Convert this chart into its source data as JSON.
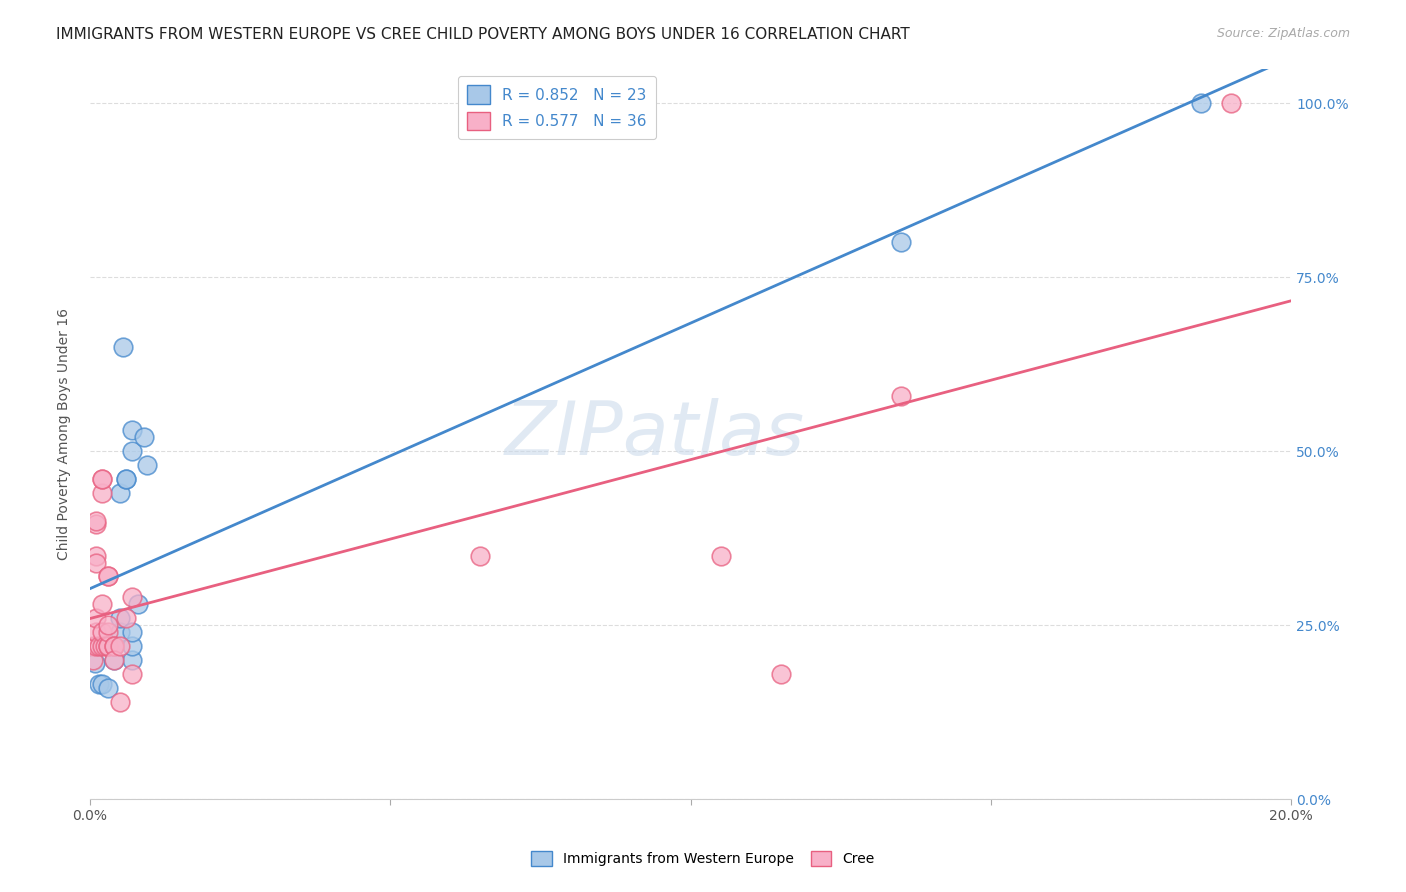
{
  "title": "IMMIGRANTS FROM WESTERN EUROPE VS CREE CHILD POVERTY AMONG BOYS UNDER 16 CORRELATION CHART",
  "source": "Source: ZipAtlas.com",
  "ylabel": "Child Poverty Among Boys Under 16",
  "blue_label": "Immigrants from Western Europe",
  "pink_label": "Cree",
  "blue_R": "0.852",
  "blue_N": "23",
  "pink_R": "0.577",
  "pink_N": "36",
  "blue_color": "#a8c8e8",
  "pink_color": "#f8b0c8",
  "blue_line_color": "#4488cc",
  "pink_line_color": "#e86080",
  "watermark": "ZIPatlas",
  "blue_points": [
    [
      0.0008,
      0.195
    ],
    [
      0.0015,
      0.165
    ],
    [
      0.002,
      0.165
    ],
    [
      0.003,
      0.16
    ],
    [
      0.003,
      0.22
    ],
    [
      0.004,
      0.2
    ],
    [
      0.004,
      0.22
    ],
    [
      0.005,
      0.24
    ],
    [
      0.005,
      0.26
    ],
    [
      0.005,
      0.44
    ],
    [
      0.006,
      0.46
    ],
    [
      0.006,
      0.46
    ],
    [
      0.007,
      0.5
    ],
    [
      0.007,
      0.53
    ],
    [
      0.007,
      0.2
    ],
    [
      0.007,
      0.22
    ],
    [
      0.007,
      0.24
    ],
    [
      0.008,
      0.28
    ],
    [
      0.009,
      0.52
    ],
    [
      0.0055,
      0.65
    ],
    [
      0.0095,
      0.48
    ],
    [
      0.185,
      1.0
    ],
    [
      0.135,
      0.8
    ]
  ],
  "pink_points": [
    [
      0.0005,
      0.22
    ],
    [
      0.0005,
      0.2
    ],
    [
      0.001,
      0.22
    ],
    [
      0.001,
      0.24
    ],
    [
      0.001,
      0.26
    ],
    [
      0.001,
      0.35
    ],
    [
      0.001,
      0.34
    ],
    [
      0.001,
      0.395
    ],
    [
      0.001,
      0.4
    ],
    [
      0.0015,
      0.22
    ],
    [
      0.002,
      0.22
    ],
    [
      0.002,
      0.24
    ],
    [
      0.002,
      0.44
    ],
    [
      0.002,
      0.46
    ],
    [
      0.002,
      0.46
    ],
    [
      0.0025,
      0.22
    ],
    [
      0.002,
      0.28
    ],
    [
      0.003,
      0.22
    ],
    [
      0.003,
      0.22
    ],
    [
      0.003,
      0.24
    ],
    [
      0.003,
      0.25
    ],
    [
      0.003,
      0.32
    ],
    [
      0.003,
      0.32
    ],
    [
      0.004,
      0.22
    ],
    [
      0.004,
      0.22
    ],
    [
      0.004,
      0.2
    ],
    [
      0.005,
      0.22
    ],
    [
      0.005,
      0.14
    ],
    [
      0.006,
      0.26
    ],
    [
      0.007,
      0.29
    ],
    [
      0.007,
      0.18
    ],
    [
      0.135,
      0.58
    ],
    [
      0.105,
      0.35
    ],
    [
      0.115,
      0.18
    ],
    [
      0.065,
      0.35
    ],
    [
      0.19,
      1.0
    ]
  ],
  "xmin": 0.0,
  "xmax": 0.2,
  "ymin": 0.0,
  "ymax": 1.05,
  "ytick_vals": [
    0.0,
    0.25,
    0.5,
    0.75,
    1.0
  ],
  "ytick_labels": [
    "0.0%",
    "25.0%",
    "50.0%",
    "75.0%",
    "100.0%"
  ],
  "xtick_vals": [
    0.0,
    0.05,
    0.1,
    0.15,
    0.2
  ],
  "xtick_labels_show": [
    "0.0%",
    "",
    "",
    "",
    "20.0%"
  ],
  "grid_color": "#dddddd",
  "background_color": "#ffffff",
  "title_fontsize": 11,
  "axis_fontsize": 10,
  "legend_fontsize": 11
}
